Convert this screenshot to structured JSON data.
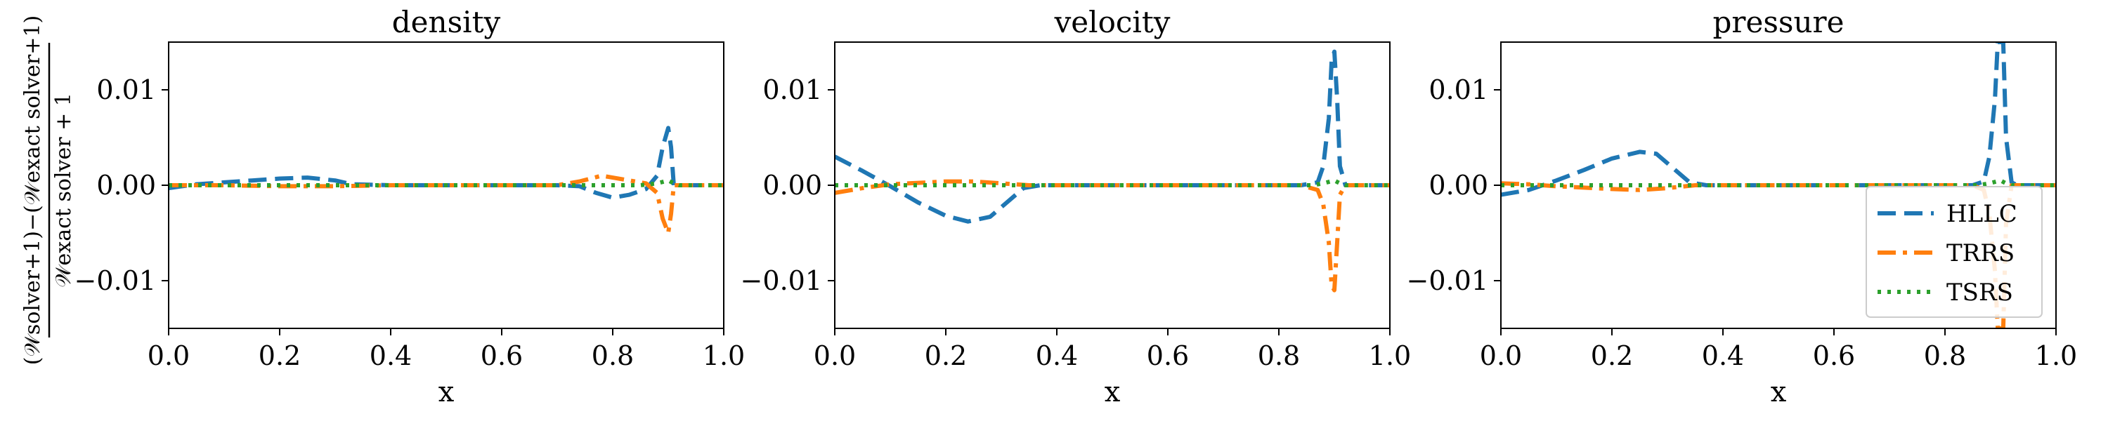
{
  "figure": {
    "ylabel": "(𝒲solver+1)−(𝒲exact solver+1) / 𝒲exact solver + 1",
    "ylabel_numerator": "(𝒲solver+1)−(𝒲exact solver+1)",
    "ylabel_denominator": "𝒲exact solver + 1"
  },
  "chart_data": [
    {
      "type": "line",
      "title": "density",
      "xlabel": "x",
      "ylabel": "(𝒲solver+1)−(𝒲exact solver+1) / 𝒲exact solver + 1",
      "xlim": [
        0,
        1
      ],
      "ylim": [
        -0.015,
        0.015
      ],
      "xticks": [
        "0.0",
        "0.2",
        "0.4",
        "0.6",
        "0.8",
        "1.0"
      ],
      "yticks": [
        "−0.01",
        "0.00",
        "0.01"
      ],
      "legend": false,
      "grid": false,
      "series": [
        {
          "name": "HLLC",
          "color": "#1f77b4",
          "style": "dashed",
          "points": [
            [
              0,
              -0.0003
            ],
            [
              0.05,
              0.0001
            ],
            [
              0.1,
              0.0003
            ],
            [
              0.15,
              0.0005
            ],
            [
              0.2,
              0.0007
            ],
            [
              0.25,
              0.0008
            ],
            [
              0.3,
              0.0005
            ],
            [
              0.33,
              0.0001
            ],
            [
              0.4,
              0
            ],
            [
              0.7,
              0
            ],
            [
              0.74,
              -0.0001
            ],
            [
              0.77,
              -0.0008
            ],
            [
              0.8,
              -0.0013
            ],
            [
              0.83,
              -0.001
            ],
            [
              0.86,
              -0.0004
            ],
            [
              0.88,
              0.001
            ],
            [
              0.89,
              0.004
            ],
            [
              0.9,
              0.006
            ],
            [
              0.905,
              0.004
            ],
            [
              0.91,
              0
            ],
            [
              0.93,
              0
            ],
            [
              1,
              0
            ]
          ]
        },
        {
          "name": "TRRS",
          "color": "#ff7f0e",
          "style": "dashdot",
          "points": [
            [
              0,
              0
            ],
            [
              0.1,
              0
            ],
            [
              0.2,
              -0.0001
            ],
            [
              0.3,
              -0.0001
            ],
            [
              0.4,
              0
            ],
            [
              0.7,
              0
            ],
            [
              0.74,
              0.0004
            ],
            [
              0.78,
              0.001
            ],
            [
              0.82,
              0.0006
            ],
            [
              0.86,
              0.0002
            ],
            [
              0.88,
              -0.0008
            ],
            [
              0.89,
              -0.0035
            ],
            [
              0.9,
              -0.005
            ],
            [
              0.905,
              -0.003
            ],
            [
              0.91,
              0
            ],
            [
              1,
              0
            ]
          ]
        },
        {
          "name": "TSRS",
          "color": "#2ca02c",
          "style": "dotted",
          "points": [
            [
              0,
              0
            ],
            [
              0.5,
              0
            ],
            [
              0.85,
              0
            ],
            [
              0.88,
              0.0002
            ],
            [
              0.9,
              0.0005
            ],
            [
              0.91,
              0.0002
            ],
            [
              0.92,
              0
            ],
            [
              1,
              0
            ]
          ]
        }
      ]
    },
    {
      "type": "line",
      "title": "velocity",
      "xlabel": "x",
      "xlim": [
        0,
        1
      ],
      "ylim": [
        -0.015,
        0.015
      ],
      "xticks": [
        "0.0",
        "0.2",
        "0.4",
        "0.6",
        "0.8",
        "1.0"
      ],
      "yticks": [
        "−0.01",
        "0.00",
        "0.01"
      ],
      "legend": false,
      "grid": false,
      "series": [
        {
          "name": "HLLC",
          "color": "#1f77b4",
          "style": "dashed",
          "points": [
            [
              0,
              0.003
            ],
            [
              0.05,
              0.0015
            ],
            [
              0.1,
              -0.0001
            ],
            [
              0.15,
              -0.0018
            ],
            [
              0.2,
              -0.0032
            ],
            [
              0.24,
              -0.0038
            ],
            [
              0.28,
              -0.0033
            ],
            [
              0.31,
              -0.0018
            ],
            [
              0.34,
              -0.0003
            ],
            [
              0.37,
              0
            ],
            [
              0.6,
              0
            ],
            [
              0.84,
              0
            ],
            [
              0.87,
              0.0003
            ],
            [
              0.88,
              0.002
            ],
            [
              0.89,
              0.007
            ],
            [
              0.895,
              0.013
            ],
            [
              0.9,
              0.014
            ],
            [
              0.905,
              0.009
            ],
            [
              0.91,
              0.002
            ],
            [
              0.92,
              0
            ],
            [
              1,
              0
            ]
          ]
        },
        {
          "name": "TRRS",
          "color": "#ff7f0e",
          "style": "dashdot",
          "points": [
            [
              0,
              -0.0008
            ],
            [
              0.05,
              -0.0003
            ],
            [
              0.1,
              0.0001
            ],
            [
              0.2,
              0.0004
            ],
            [
              0.25,
              0.0004
            ],
            [
              0.3,
              0.0002
            ],
            [
              0.35,
              0
            ],
            [
              0.84,
              0
            ],
            [
              0.87,
              -0.0005
            ],
            [
              0.88,
              -0.002
            ],
            [
              0.89,
              -0.006
            ],
            [
              0.895,
              -0.0105
            ],
            [
              0.9,
              -0.011
            ],
            [
              0.905,
              -0.006
            ],
            [
              0.91,
              -0.001
            ],
            [
              0.92,
              0
            ],
            [
              1,
              0
            ]
          ]
        },
        {
          "name": "TSRS",
          "color": "#2ca02c",
          "style": "dotted",
          "points": [
            [
              0,
              0
            ],
            [
              0.5,
              0
            ],
            [
              0.86,
              0
            ],
            [
              0.88,
              0.0002
            ],
            [
              0.9,
              0.0005
            ],
            [
              0.91,
              0.0002
            ],
            [
              0.92,
              0
            ],
            [
              1,
              0
            ]
          ]
        }
      ]
    },
    {
      "type": "line",
      "title": "pressure",
      "xlabel": "x",
      "xlim": [
        0,
        1
      ],
      "ylim": [
        -0.015,
        0.015
      ],
      "xticks": [
        "0.0",
        "0.2",
        "0.4",
        "0.6",
        "0.8",
        "1.0"
      ],
      "yticks": [
        "−0.01",
        "0.00",
        "0.01"
      ],
      "legend": true,
      "legend_position": "lower-right",
      "grid": false,
      "series": [
        {
          "name": "HLLC",
          "color": "#1f77b4",
          "style": "dashed",
          "points": [
            [
              0,
              -0.001
            ],
            [
              0.05,
              -0.0005
            ],
            [
              0.1,
              0.0005
            ],
            [
              0.15,
              0.0016
            ],
            [
              0.2,
              0.0028
            ],
            [
              0.25,
              0.0035
            ],
            [
              0.28,
              0.0033
            ],
            [
              0.31,
              0.0018
            ],
            [
              0.34,
              0.0003
            ],
            [
              0.37,
              0
            ],
            [
              0.6,
              0
            ],
            [
              0.85,
              0
            ],
            [
              0.87,
              0.0004
            ],
            [
              0.88,
              0.003
            ],
            [
              0.89,
              0.009
            ],
            [
              0.895,
              0.015
            ],
            [
              0.905,
              0.015
            ],
            [
              0.91,
              0.005
            ],
            [
              0.92,
              0.0003
            ],
            [
              0.93,
              0
            ],
            [
              1,
              0
            ]
          ]
        },
        {
          "name": "TRRS",
          "color": "#ff7f0e",
          "style": "dashdot",
          "points": [
            [
              0,
              0.0002
            ],
            [
              0.05,
              0.0001
            ],
            [
              0.1,
              -0.0001
            ],
            [
              0.2,
              -0.0004
            ],
            [
              0.25,
              -0.0005
            ],
            [
              0.3,
              -0.0003
            ],
            [
              0.35,
              0
            ],
            [
              0.85,
              0
            ],
            [
              0.87,
              -0.0005
            ],
            [
              0.88,
              -0.003
            ],
            [
              0.89,
              -0.009
            ],
            [
              0.895,
              -0.015
            ],
            [
              0.905,
              -0.015
            ],
            [
              0.91,
              -0.004
            ],
            [
              0.92,
              0
            ],
            [
              1,
              0
            ]
          ]
        },
        {
          "name": "TSRS",
          "color": "#2ca02c",
          "style": "dotted",
          "points": [
            [
              0,
              0
            ],
            [
              0.5,
              0
            ],
            [
              0.86,
              0
            ],
            [
              0.88,
              0.0002
            ],
            [
              0.9,
              0.0005
            ],
            [
              0.91,
              0.0002
            ],
            [
              0.92,
              0
            ],
            [
              1,
              0
            ]
          ]
        }
      ]
    }
  ]
}
